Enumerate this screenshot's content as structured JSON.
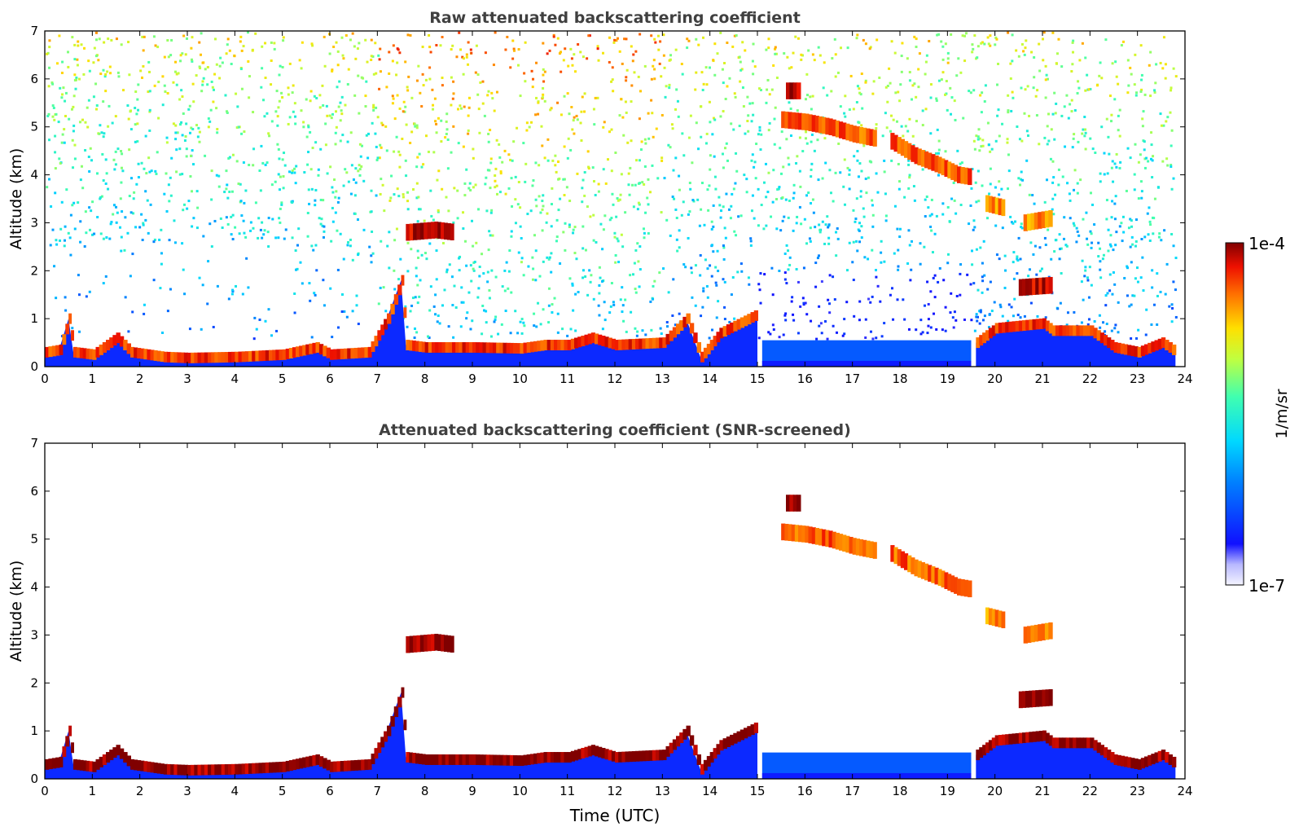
{
  "figure": {
    "colorbar": {
      "label": "1/m/sr",
      "max_label": "1e-4",
      "min_label": "1e-7",
      "scale": "log",
      "range": [
        1e-07,
        0.0001
      ],
      "colormap": "jet (white at low end)"
    },
    "xlabel": "Time (UTC)"
  },
  "chart_data": [
    {
      "type": "heatmap",
      "title": "Raw attenuated backscattering coefficient",
      "ylabel": "Altitude (km)",
      "xlabel": "",
      "xlim": [
        0,
        24
      ],
      "ylim": [
        0,
        7
      ],
      "x_ticks": [
        "0",
        "1",
        "2",
        "3",
        "4",
        "5",
        "6",
        "7",
        "8",
        "9",
        "10",
        "11",
        "12",
        "13",
        "14",
        "15",
        "16",
        "17",
        "18",
        "19",
        "20",
        "21",
        "22",
        "23",
        "24"
      ],
      "y_ticks": [
        "0",
        "1",
        "2",
        "3",
        "4",
        "5",
        "6",
        "7"
      ],
      "noise": true,
      "features": [
        {
          "kind": "boundary_layer",
          "points": [
            [
              0,
              0.3
            ],
            [
              0.3,
              0.35
            ],
            [
              0.5,
              1.0
            ],
            [
              0.6,
              0.3
            ],
            [
              1,
              0.25
            ],
            [
              1.5,
              0.6
            ],
            [
              1.8,
              0.3
            ],
            [
              2.5,
              0.2
            ],
            [
              3,
              0.18
            ],
            [
              4,
              0.2
            ],
            [
              5,
              0.25
            ],
            [
              5.7,
              0.4
            ],
            [
              6,
              0.25
            ],
            [
              6.8,
              0.3
            ],
            [
              7.2,
              1.0
            ],
            [
              7.5,
              1.8
            ],
            [
              7.6,
              0.45
            ],
            [
              8,
              0.4
            ],
            [
              9,
              0.4
            ],
            [
              10,
              0.38
            ],
            [
              10.5,
              0.45
            ],
            [
              11,
              0.45
            ],
            [
              11.5,
              0.6
            ],
            [
              12,
              0.45
            ],
            [
              13,
              0.5
            ],
            [
              13.5,
              1.0
            ],
            [
              13.8,
              0.2
            ],
            [
              14.2,
              0.7
            ],
            [
              15,
              1.1
            ]
          ],
          "value": 5e-05
        },
        {
          "kind": "clear_gap",
          "x": [
            15.1,
            19.5
          ],
          "value": 3e-07
        },
        {
          "kind": "boundary_layer",
          "points": [
            [
              19.6,
              0.5
            ],
            [
              20,
              0.8
            ],
            [
              20.5,
              0.85
            ],
            [
              21,
              0.9
            ],
            [
              21.2,
              0.75
            ],
            [
              22,
              0.75
            ],
            [
              22.5,
              0.4
            ],
            [
              23,
              0.3
            ],
            [
              23.5,
              0.5
            ],
            [
              23.8,
              0.3
            ]
          ],
          "value": 5e-05
        },
        {
          "kind": "cloud",
          "points": [
            [
              7.6,
              2.8
            ],
            [
              8.2,
              2.85
            ],
            [
              8.6,
              2.8
            ]
          ],
          "value": 8e-05
        },
        {
          "kind": "cloud",
          "points": [
            [
              15.6,
              5.75
            ],
            [
              15.9,
              5.75
            ]
          ],
          "value": 9e-05
        },
        {
          "kind": "cloud",
          "points": [
            [
              15.5,
              5.15
            ],
            [
              16,
              5.1
            ],
            [
              16.5,
              5.0
            ],
            [
              17,
              4.85
            ],
            [
              17.5,
              4.75
            ]
          ],
          "value": 4e-05
        },
        {
          "kind": "cloud",
          "points": [
            [
              17.8,
              4.7
            ],
            [
              18.3,
              4.4
            ],
            [
              18.8,
              4.2
            ],
            [
              19.2,
              4.0
            ],
            [
              19.5,
              3.95
            ]
          ],
          "value": 4e-05
        },
        {
          "kind": "cloud",
          "points": [
            [
              19.8,
              3.4
            ],
            [
              20.2,
              3.3
            ]
          ],
          "value": 3e-05
        },
        {
          "kind": "cloud",
          "points": [
            [
              20.6,
              3.0
            ],
            [
              21.2,
              3.1
            ]
          ],
          "value": 3e-05
        },
        {
          "kind": "cloud",
          "points": [
            [
              20.5,
              1.65
            ],
            [
              21.2,
              1.7
            ]
          ],
          "value": 8e-05
        }
      ]
    },
    {
      "type": "heatmap",
      "title": "Attenuated backscattering coefficient (SNR-screened)",
      "ylabel": "Altitude (km)",
      "xlabel": "Time (UTC)",
      "xlim": [
        0,
        24
      ],
      "ylim": [
        0,
        7
      ],
      "x_ticks": [
        "0",
        "1",
        "2",
        "3",
        "4",
        "5",
        "6",
        "7",
        "8",
        "9",
        "10",
        "11",
        "12",
        "13",
        "14",
        "15",
        "16",
        "17",
        "18",
        "19",
        "20",
        "21",
        "22",
        "23",
        "24"
      ],
      "y_ticks": [
        "0",
        "1",
        "2",
        "3",
        "4",
        "5",
        "6",
        "7"
      ],
      "noise": false,
      "features": [
        {
          "kind": "boundary_layer",
          "points": [
            [
              0,
              0.3
            ],
            [
              0.3,
              0.35
            ],
            [
              0.5,
              1.0
            ],
            [
              0.6,
              0.3
            ],
            [
              1,
              0.25
            ],
            [
              1.5,
              0.6
            ],
            [
              1.8,
              0.3
            ],
            [
              2.5,
              0.2
            ],
            [
              3,
              0.18
            ],
            [
              4,
              0.2
            ],
            [
              5,
              0.25
            ],
            [
              5.7,
              0.4
            ],
            [
              6,
              0.25
            ],
            [
              6.8,
              0.3
            ],
            [
              7.2,
              1.0
            ],
            [
              7.5,
              1.8
            ],
            [
              7.6,
              0.45
            ],
            [
              8,
              0.4
            ],
            [
              9,
              0.4
            ],
            [
              10,
              0.38
            ],
            [
              10.5,
              0.45
            ],
            [
              11,
              0.45
            ],
            [
              11.5,
              0.6
            ],
            [
              12,
              0.45
            ],
            [
              13,
              0.5
            ],
            [
              13.5,
              1.0
            ],
            [
              13.8,
              0.2
            ],
            [
              14.2,
              0.7
            ],
            [
              15,
              1.1
            ]
          ],
          "value": 0.0001
        },
        {
          "kind": "clear_gap",
          "x": [
            15.1,
            19.5
          ],
          "value": 3e-07
        },
        {
          "kind": "boundary_layer",
          "points": [
            [
              19.6,
              0.5
            ],
            [
              20,
              0.8
            ],
            [
              20.5,
              0.85
            ],
            [
              21,
              0.9
            ],
            [
              21.2,
              0.75
            ],
            [
              22,
              0.75
            ],
            [
              22.5,
              0.4
            ],
            [
              23,
              0.3
            ],
            [
              23.5,
              0.5
            ],
            [
              23.8,
              0.3
            ]
          ],
          "value": 0.0001
        },
        {
          "kind": "cloud",
          "points": [
            [
              7.6,
              2.8
            ],
            [
              8.2,
              2.85
            ],
            [
              8.6,
              2.8
            ]
          ],
          "value": 0.0001
        },
        {
          "kind": "cloud",
          "points": [
            [
              15.6,
              5.75
            ],
            [
              15.9,
              5.75
            ]
          ],
          "value": 0.0001
        },
        {
          "kind": "cloud",
          "points": [
            [
              15.5,
              5.15
            ],
            [
              16,
              5.1
            ],
            [
              16.5,
              5.0
            ],
            [
              17,
              4.85
            ],
            [
              17.5,
              4.75
            ]
          ],
          "value": 4e-05
        },
        {
          "kind": "cloud",
          "points": [
            [
              17.8,
              4.7
            ],
            [
              18.3,
              4.4
            ],
            [
              18.8,
              4.2
            ],
            [
              19.2,
              4.0
            ],
            [
              19.5,
              3.95
            ]
          ],
          "value": 4e-05
        },
        {
          "kind": "cloud",
          "points": [
            [
              19.8,
              3.4
            ],
            [
              20.2,
              3.3
            ]
          ],
          "value": 3e-05
        },
        {
          "kind": "cloud",
          "points": [
            [
              20.6,
              3.0
            ],
            [
              21.2,
              3.1
            ]
          ],
          "value": 3e-05
        },
        {
          "kind": "cloud",
          "points": [
            [
              20.5,
              1.65
            ],
            [
              21.2,
              1.7
            ]
          ],
          "value": 0.0001
        }
      ]
    }
  ]
}
